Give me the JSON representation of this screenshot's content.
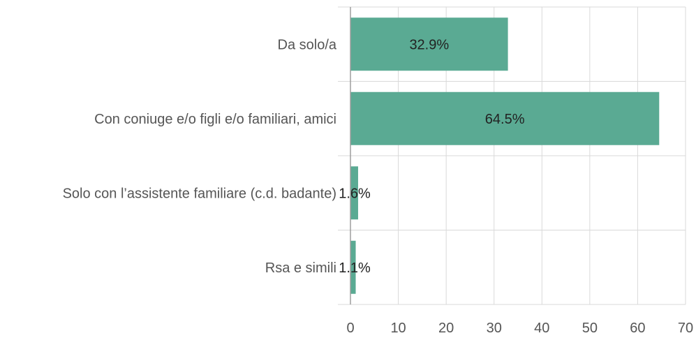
{
  "chart_data": {
    "type": "bar",
    "orientation": "horizontal",
    "title": "",
    "xlabel": "",
    "ylabel": "",
    "categories": [
      "Da solo/a",
      "Con coniuge e/o figli e/o familiari, amici",
      "Solo con l’assistente familiare (c.d. badante)",
      "Rsa e simili"
    ],
    "values": [
      32.9,
      64.5,
      1.6,
      1.1
    ],
    "data_labels": [
      "32.9%",
      "64.5%",
      "1.6%",
      "1.1%"
    ],
    "xlim": [
      0,
      70
    ],
    "xticks": [
      0,
      10,
      20,
      30,
      40,
      50,
      60,
      70
    ],
    "xtick_labels": [
      "0",
      "10",
      "20",
      "30",
      "40",
      "50",
      "60",
      "70"
    ],
    "grid": true,
    "legend": "none",
    "bar_color": "#5aaa93"
  }
}
